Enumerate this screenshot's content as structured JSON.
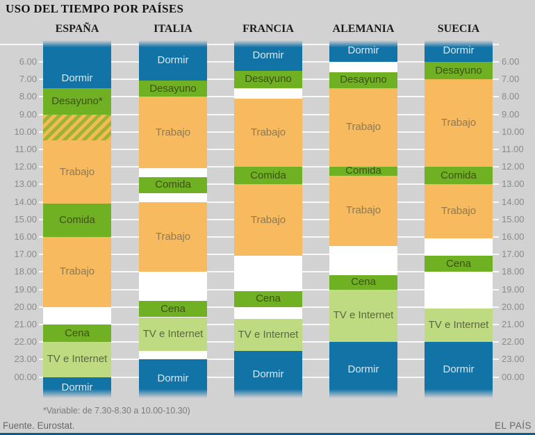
{
  "title": "USO DEL TIEMPO POR PAÍSES",
  "footnote": "*Variable: de 7.30-8.30 a 10.00-10.30)",
  "source": "Fuente. Eurostat.",
  "brand": "EL PAÍS",
  "colors": {
    "background": "#d2d2d2",
    "sleep": "#1273a7",
    "meal": "#6fb123",
    "work": "#f7ba5e",
    "tv": "#bedb82",
    "variable_stripe_orange": "#f3bb52",
    "variable_stripe_green": "#9fb234",
    "gridline": "#ffffff",
    "axis_text": "#8a8a8a",
    "bottom_bar": "#0c5b89"
  },
  "chart_data": {
    "type": "bar",
    "variant": "stacked-daily-time-use-columns",
    "title": "USO DEL TIEMPO POR PAÍSES",
    "legend_note": "*Variable: de 7.30-8.30 a 10.00-10.30)",
    "time_axis": {
      "tick_labels": [
        "6.00",
        "7.00",
        "8.00",
        "9.00",
        "10.00",
        "11.00",
        "12.00",
        "13.00",
        "14.00",
        "15.00",
        "16.00",
        "17.00",
        "18.00",
        "19.00",
        "20.00",
        "21.00",
        "22.00",
        "23.00",
        "00.00"
      ],
      "ticks_on_both_sides": true,
      "grid": true
    },
    "categories": [
      "ESPAÑA",
      "ITALIA",
      "FRANCIA",
      "ALEMANIA",
      "SUECIA"
    ],
    "countries": [
      {
        "name": "ESPAÑA",
        "segments": [
          {
            "label": "Dormir",
            "type": "sleep",
            "start": null,
            "end": "7.30"
          },
          {
            "label": "Desayuno*",
            "type": "meal",
            "start": "7.30",
            "end": "9.00"
          },
          {
            "label": "",
            "type": "variable",
            "start": "9.00",
            "end": "10.30"
          },
          {
            "label": "Trabajo",
            "type": "work",
            "start": "10.30",
            "end": "14.05"
          },
          {
            "label": "Comida",
            "type": "meal",
            "start": "14.05",
            "end": "16.00"
          },
          {
            "label": "Trabajo",
            "type": "work",
            "start": "16.00",
            "end": "20.00"
          },
          {
            "label": "Cena",
            "type": "meal",
            "start": "21.00",
            "end": "22.00"
          },
          {
            "label": "TV e Internet",
            "type": "tv",
            "start": "22.00",
            "end": "00.00"
          },
          {
            "label": "Dormir",
            "type": "sleep",
            "start": "00.00",
            "end": null
          }
        ]
      },
      {
        "name": "ITALIA",
        "segments": [
          {
            "label": "Dormir",
            "type": "sleep",
            "start": null,
            "end": "7.05"
          },
          {
            "label": "Desayuno",
            "type": "meal",
            "start": "7.05",
            "end": "8.00"
          },
          {
            "label": "Trabajo",
            "type": "work",
            "start": "8.00",
            "end": "12.05"
          },
          {
            "label": "Comida",
            "type": "meal",
            "start": "12.35",
            "end": "13.30"
          },
          {
            "label": "Trabajo",
            "type": "work",
            "start": "14.00",
            "end": "18.00"
          },
          {
            "label": "Cena",
            "type": "meal",
            "start": "19.40",
            "end": "20.35"
          },
          {
            "label": "TV e Internet",
            "type": "tv",
            "start": "20.35",
            "end": "22.30"
          },
          {
            "label": "Dormir",
            "type": "sleep",
            "start": "23.00",
            "end": null
          }
        ]
      },
      {
        "name": "FRANCIA",
        "segments": [
          {
            "label": "Dormir",
            "type": "sleep",
            "start": null,
            "end": "6.30"
          },
          {
            "label": "Desayuno",
            "type": "meal",
            "start": "6.30",
            "end": "7.30"
          },
          {
            "label": "Trabajo",
            "type": "work",
            "start": "8.05",
            "end": "12.00"
          },
          {
            "label": "Comida",
            "type": "meal",
            "start": "12.00",
            "end": "13.00"
          },
          {
            "label": "Trabajo",
            "type": "work",
            "start": "13.00",
            "end": "17.05"
          },
          {
            "label": "Cena",
            "type": "meal",
            "start": "19.05",
            "end": "20.00"
          },
          {
            "label": "TV e Internet",
            "type": "tv",
            "start": "20.40",
            "end": "22.30"
          },
          {
            "label": "Dormir",
            "type": "sleep",
            "start": "22.30",
            "end": null
          }
        ]
      },
      {
        "name": "ALEMANIA",
        "segments": [
          {
            "label": "Dormir",
            "type": "sleep",
            "start": null,
            "end": "6.00"
          },
          {
            "label": "Desayuno",
            "type": "meal",
            "start": "6.35",
            "end": "7.30"
          },
          {
            "label": "Trabajo",
            "type": "work",
            "start": "7.30",
            "end": "12.00"
          },
          {
            "label": "Comida",
            "type": "meal",
            "start": "12.00",
            "end": "12.30"
          },
          {
            "label": "Trabajo",
            "type": "work",
            "start": "12.30",
            "end": "16.30"
          },
          {
            "label": "Cena",
            "type": "meal",
            "start": "18.10",
            "end": "19.00"
          },
          {
            "label": "TV e Internet",
            "type": "tv",
            "start": "19.00",
            "end": "22.00"
          },
          {
            "label": "Dormir",
            "type": "sleep",
            "start": "22.00",
            "end": null
          }
        ]
      },
      {
        "name": "SUECIA",
        "segments": [
          {
            "label": "Dormir",
            "type": "sleep",
            "start": null,
            "end": "6.00"
          },
          {
            "label": "Desayuno",
            "type": "meal",
            "start": "6.00",
            "end": "7.00"
          },
          {
            "label": "Trabajo",
            "type": "work",
            "start": "7.00",
            "end": "12.00"
          },
          {
            "label": "Comida",
            "type": "meal",
            "start": "12.00",
            "end": "13.00"
          },
          {
            "label": "Trabajo",
            "type": "work",
            "start": "13.00",
            "end": "16.05"
          },
          {
            "label": "Cena",
            "type": "meal",
            "start": "17.05",
            "end": "18.00"
          },
          {
            "label": "TV e Internet",
            "type": "tv",
            "start": "20.05",
            "end": "22.00"
          },
          {
            "label": "Dormir",
            "type": "sleep",
            "start": "22.00",
            "end": null
          }
        ]
      }
    ]
  }
}
